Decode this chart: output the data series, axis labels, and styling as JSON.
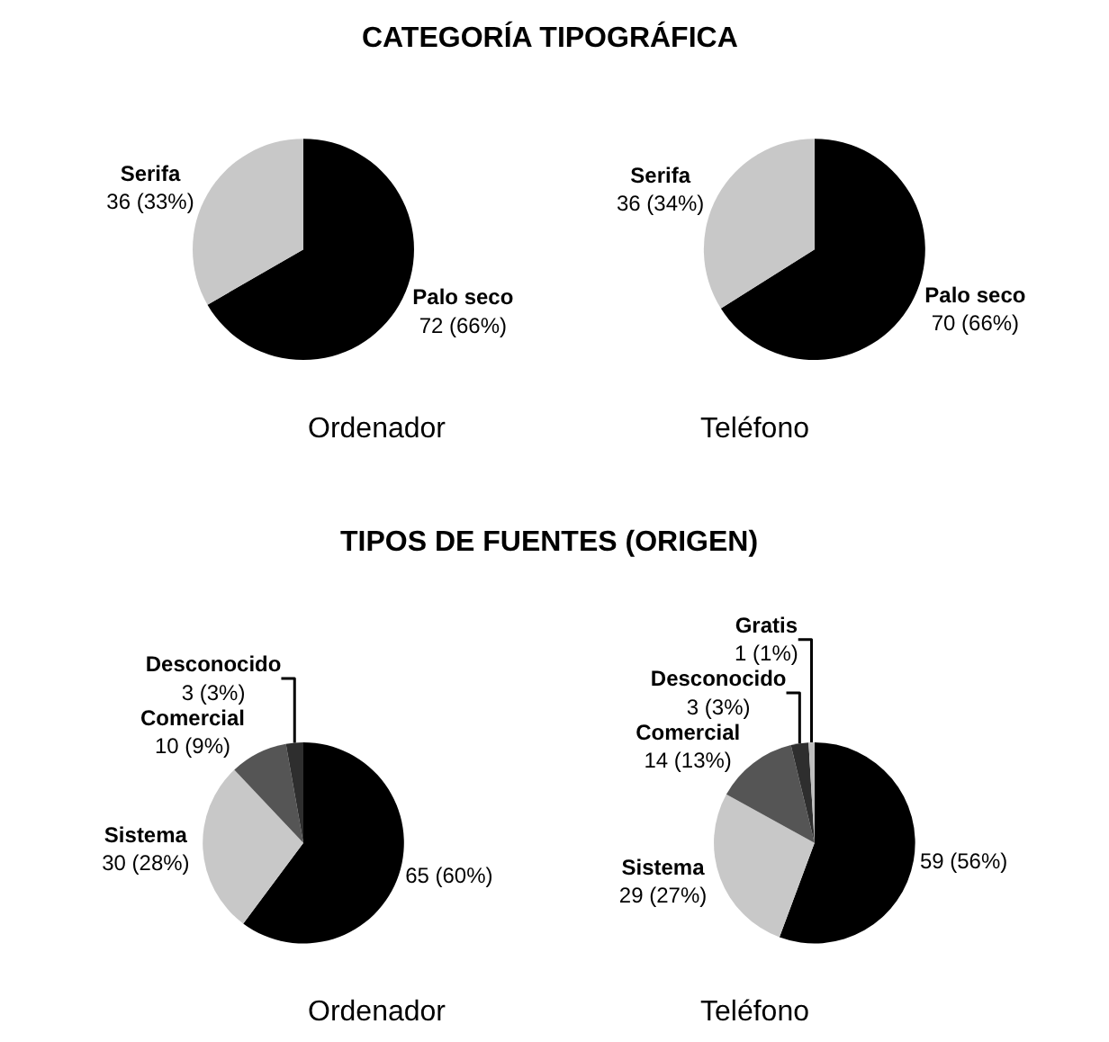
{
  "chart_data": [
    {
      "type": "pie",
      "title": "CATEGORÍA TIPOGRÁFICA",
      "xlabel": "Ordenador",
      "categories": [
        "Palo seco",
        "Serifa"
      ],
      "values": [
        72,
        36
      ],
      "colors": [
        "#000000",
        "#c8c8c8"
      ],
      "value_labels": [
        "72 (66%)",
        "36 (33%)"
      ]
    },
    {
      "type": "pie",
      "xlabel": "Teléfono",
      "categories": [
        "Palo seco",
        "Serifa"
      ],
      "values": [
        70,
        36
      ],
      "colors": [
        "#000000",
        "#c8c8c8"
      ],
      "value_labels": [
        "70 (66%)",
        "36 (34%)"
      ]
    },
    {
      "type": "pie",
      "title": "TIPOS DE FUENTES (ORIGEN)",
      "xlabel": "Ordenador",
      "categories": [
        null,
        "Sistema",
        "Comercial",
        "Desconocido"
      ],
      "values": [
        65,
        30,
        10,
        3
      ],
      "colors": [
        "#000000",
        "#c8c8c8",
        "#555555",
        "#2e2e2e"
      ],
      "value_labels": [
        "65 (60%)",
        "30 (28%)",
        "10 (9%)",
        "3 (3%)"
      ]
    },
    {
      "type": "pie",
      "xlabel": "Teléfono",
      "categories": [
        null,
        "Sistema",
        "Comercial",
        "Desconocido",
        "Gratis"
      ],
      "values": [
        59,
        29,
        14,
        3,
        1
      ],
      "colors": [
        "#000000",
        "#c8c8c8",
        "#555555",
        "#2e2e2e",
        "#bdbdbd"
      ],
      "value_labels": [
        "59 (56%)",
        "29 (27%)",
        "14 (13%)",
        "3 (3%)",
        "1 (1%)"
      ]
    }
  ]
}
